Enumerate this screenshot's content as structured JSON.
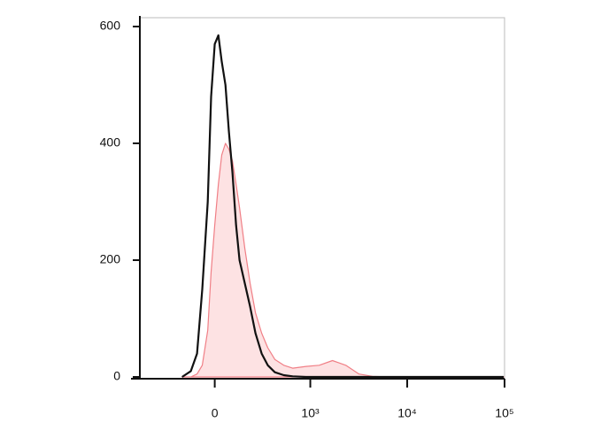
{
  "chart_data": {
    "type": "histogram-overlay",
    "x": [
      -180,
      -126,
      -91,
      -63,
      -35,
      -18,
      0,
      18,
      35,
      54,
      72,
      91,
      111,
      131,
      163,
      198,
      236,
      285,
      340,
      412,
      519,
      649,
      899,
      1239,
      1703,
      2334,
      3197,
      4376,
      6655,
      12470,
      35450,
      98000
    ],
    "series": [
      {
        "color": "#f07f86",
        "fill": "#fde2e3",
        "filled": true,
        "values": [
          0,
          0,
          5,
          20,
          80,
          180,
          260,
          330,
          380,
          400,
          390,
          370,
          330,
          290,
          220,
          160,
          110,
          75,
          50,
          30,
          20,
          15,
          18,
          20,
          28,
          20,
          5,
          1,
          0,
          0,
          0,
          0
        ]
      },
      {
        "color": "#111111",
        "filled": false,
        "values": [
          0,
          10,
          40,
          150,
          300,
          480,
          570,
          585,
          540,
          500,
          420,
          350,
          260,
          200,
          160,
          120,
          75,
          40,
          20,
          8,
          3,
          1,
          0,
          0,
          0,
          0,
          0,
          0,
          0,
          0,
          0,
          0
        ]
      }
    ],
    "xscale": "biexponential",
    "xlim": [
      -750,
      100000
    ],
    "xticks": [
      0,
      {
        "value": 1000,
        "label": "10³"
      },
      {
        "value": 10000,
        "label": "10⁴"
      },
      {
        "value": 100000,
        "label": "10⁵"
      }
    ],
    "ylim": [
      0,
      600
    ],
    "yticks": [
      0,
      200,
      400,
      600
    ]
  }
}
